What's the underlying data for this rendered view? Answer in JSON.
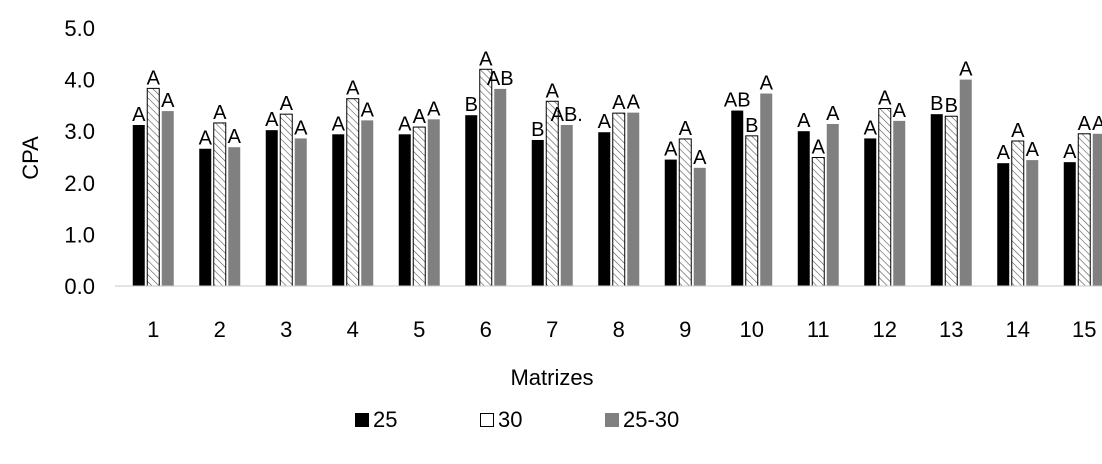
{
  "chart_data": {
    "type": "bar",
    "xlabel": "Matrizes",
    "ylabel": "CPA",
    "ylim": [
      0,
      5
    ],
    "yticks": [
      "0.0",
      "1.0",
      "2.0",
      "3.0",
      "4.0",
      "5.0"
    ],
    "categories": [
      "1",
      "2",
      "3",
      "4",
      "5",
      "6",
      "7",
      "8",
      "9",
      "10",
      "11",
      "12",
      "13",
      "14",
      "15"
    ],
    "grid": false,
    "legend_position": "bottom",
    "series": [
      {
        "name": "25",
        "color": "#000000",
        "pattern": "solid",
        "values": [
          3.12,
          2.66,
          3.02,
          2.94,
          2.94,
          3.31,
          2.83,
          2.98,
          2.45,
          3.4,
          3.0,
          2.86,
          3.33,
          2.38,
          2.4
        ],
        "labels": [
          "A",
          "A",
          "A",
          "A",
          "A",
          "B",
          "B",
          "A",
          "A",
          "AB",
          "A",
          "A",
          "B",
          "A",
          "A"
        ]
      },
      {
        "name": "30",
        "color": "#ffffff",
        "pattern": "hatched",
        "values": [
          3.83,
          3.16,
          3.33,
          3.63,
          3.08,
          4.2,
          3.58,
          3.35,
          2.85,
          2.91,
          2.49,
          3.44,
          3.29,
          2.81,
          2.95
        ],
        "labels": [
          "A",
          "A",
          "A",
          "A",
          "A",
          "A",
          "A",
          "A",
          "A",
          "B",
          "A",
          "A",
          "B",
          "A",
          "A"
        ]
      },
      {
        "name": "25-30",
        "color": "#808080",
        "pattern": "solid",
        "values": [
          3.39,
          2.69,
          2.86,
          3.21,
          3.23,
          3.82,
          3.12,
          3.36,
          2.29,
          3.73,
          3.14,
          3.2,
          4.0,
          2.44,
          2.95
        ],
        "labels": [
          "A",
          "A",
          "A",
          "A",
          "A",
          "AB",
          "AB.",
          "A",
          "A",
          "A",
          "A",
          "A",
          "A",
          "A",
          "A"
        ]
      }
    ]
  }
}
